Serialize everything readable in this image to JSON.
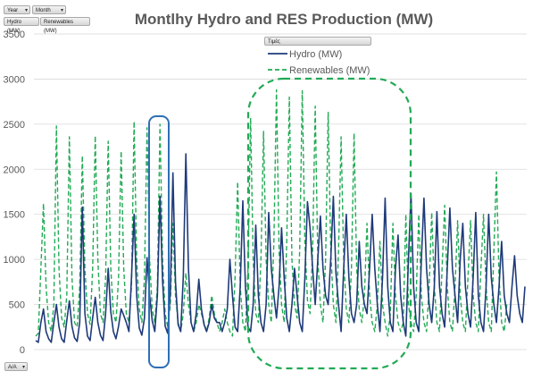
{
  "filters": {
    "year": "Year",
    "month": "Month",
    "hydro_field": "Hydro (MW)",
    "res_field": "Renewables (MW)",
    "legend_field": "Τιμές",
    "axis_field": "A/A"
  },
  "colors": {
    "hydro": "#1f3a7a",
    "renewables": "#22aa55",
    "highlight_blue": "#2e6fb5",
    "highlight_green": "#22aa55",
    "title": "#595959",
    "axis_text": "#595959",
    "grid": "#d9d9d9"
  },
  "chart_data": {
    "type": "line",
    "title": "Montlhy Hydro and RES Production (MW)",
    "xlabel": "",
    "ylabel": "",
    "ylim": [
      0,
      3500
    ],
    "yticks": [
      0,
      500,
      1000,
      1500,
      2000,
      2500,
      3000,
      3500
    ],
    "grid": true,
    "legend_position": "top-right",
    "x": "index 1..190 (unlabeled hourly/periodic points)",
    "series": [
      {
        "name": "Hydro (MW)",
        "style": "solid",
        "values": [
          100,
          80,
          300,
          450,
          200,
          120,
          80,
          300,
          500,
          250,
          120,
          80,
          320,
          540,
          260,
          130,
          90,
          300,
          1580,
          400,
          150,
          100,
          350,
          580,
          300,
          160,
          100,
          400,
          900,
          420,
          200,
          120,
          260,
          450,
          380,
          300,
          200,
          800,
          1500,
          600,
          240,
          160,
          350,
          1020,
          600,
          320,
          200,
          600,
          1700,
          760,
          260,
          180,
          650,
          1960,
          750,
          280,
          200,
          800,
          2170,
          900,
          300,
          200,
          400,
          780,
          450,
          280,
          200,
          300,
          500,
          350,
          300,
          300,
          200,
          300,
          450,
          1000,
          600,
          250,
          200,
          700,
          1650,
          700,
          250,
          200,
          500,
          1380,
          600,
          300,
          200,
          500,
          1520,
          900,
          600,
          350,
          700,
          1350,
          800,
          350,
          200,
          500,
          900,
          600,
          300,
          200,
          800,
          1640,
          1350,
          900,
          500,
          1000,
          1480,
          900,
          600,
          500,
          1000,
          1700,
          850,
          500,
          200,
          900,
          1500,
          800,
          400,
          300,
          500,
          1200,
          700,
          500,
          400,
          900,
          1500,
          900,
          500,
          200,
          800,
          1680,
          700,
          300,
          200,
          900,
          1270,
          600,
          300,
          150,
          1000,
          1730,
          700,
          300,
          200,
          1000,
          1680,
          900,
          500,
          300,
          700,
          1530,
          700,
          400,
          250,
          900,
          1570,
          900,
          600,
          300,
          1000,
          1400,
          700,
          400,
          250,
          800,
          1520,
          600,
          300,
          200,
          700,
          1500,
          800,
          500,
          300,
          700,
          1200,
          600,
          400,
          300,
          700,
          1040,
          600,
          400,
          300,
          700
        ]
      },
      {
        "name": "Renewables (MW)",
        "style": "dashed",
        "values": [
          150,
          180,
          900,
          1620,
          700,
          300,
          200,
          500,
          2480,
          900,
          350,
          250,
          600,
          2360,
          800,
          300,
          250,
          700,
          2150,
          900,
          400,
          280,
          900,
          2370,
          1000,
          400,
          300,
          800,
          2310,
          900,
          400,
          300,
          800,
          2200,
          900,
          400,
          300,
          700,
          2530,
          1000,
          450,
          300,
          800,
          2460,
          1000,
          450,
          300,
          700,
          2500,
          1000,
          400,
          250,
          500,
          1400,
          600,
          300,
          200,
          400,
          850,
          500,
          300,
          200,
          300,
          500,
          400,
          300,
          200,
          350,
          600,
          400,
          300,
          200,
          300,
          450,
          300,
          200,
          150,
          800,
          1860,
          700,
          300,
          200,
          900,
          2570,
          1000,
          400,
          300,
          1000,
          2420,
          1000,
          500,
          300,
          1200,
          2880,
          1100,
          500,
          300,
          1200,
          2800,
          1000,
          500,
          350,
          1100,
          2870,
          1200,
          550,
          400,
          1100,
          2700,
          1000,
          500,
          300,
          1000,
          2630,
          1100,
          500,
          300,
          1100,
          2360,
          1000,
          450,
          300,
          900,
          2400,
          900,
          450,
          300,
          600,
          1400,
          600,
          300,
          200,
          500,
          1200,
          500,
          300,
          150,
          400,
          1400,
          600,
          300,
          200,
          300,
          1500,
          500,
          300,
          200,
          600,
          1500,
          600,
          300,
          200,
          700,
          1520,
          700,
          300,
          200,
          900,
          1600,
          700,
          300,
          200,
          700,
          1430,
          600,
          300,
          200,
          800,
          1430,
          600,
          300,
          200,
          900,
          1500,
          700,
          300,
          200,
          1100,
          1970,
          800,
          300,
          200,
          500
        ]
      }
    ],
    "annotations": [
      {
        "shape": "rounded-rectangle",
        "color": "blue",
        "style": "solid"
      },
      {
        "shape": "rounded-rectangle",
        "color": "green",
        "style": "dashed"
      }
    ]
  }
}
